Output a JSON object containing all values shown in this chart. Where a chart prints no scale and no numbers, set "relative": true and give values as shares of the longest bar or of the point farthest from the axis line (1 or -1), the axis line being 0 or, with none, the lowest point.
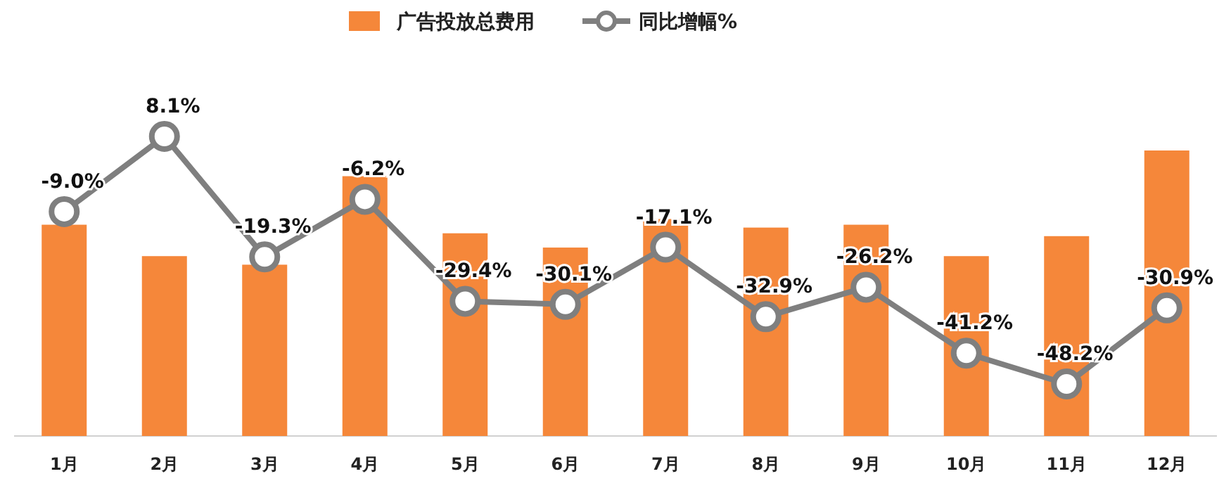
{
  "chart_data": [
    {
      "type": "bar",
      "relative": true,
      "legend": "top",
      "categories": [
        "1月",
        "2月",
        "3月",
        "4月",
        "5月",
        "6月",
        "7月",
        "8月",
        "9月",
        "10月",
        "11月",
        "12月"
      ],
      "series": [
        {
          "name": "广告投放总费用",
          "color": "#f5873a",
          "values": [
            0.74,
            0.63,
            0.6,
            0.91,
            0.71,
            0.66,
            0.76,
            0.73,
            0.74,
            0.63,
            0.7,
            1
          ]
        }
      ]
    },
    {
      "type": "line",
      "legend": "top",
      "marker": "circle",
      "categories": [
        null,
        null,
        null,
        null,
        null,
        null,
        null,
        null,
        null,
        null,
        null,
        null
      ],
      "series": [
        {
          "name": "同比增幅%",
          "color": "#7f7f7f",
          "values": [
            -9.0,
            8.1,
            -19.3,
            -6.2,
            -29.4,
            -30.1,
            -17.1,
            -32.9,
            -26.2,
            -41.2,
            -48.2,
            -30.9
          ],
          "value_labels": [
            "-9.0%",
            "8.1%",
            "-19.3%",
            "-6.2%",
            "-29.4%",
            "-30.1%",
            "-17.1%",
            "-32.9%",
            "-26.2%",
            "-41.2%",
            "-48.2%",
            "-30.9%"
          ]
        }
      ]
    }
  ]
}
